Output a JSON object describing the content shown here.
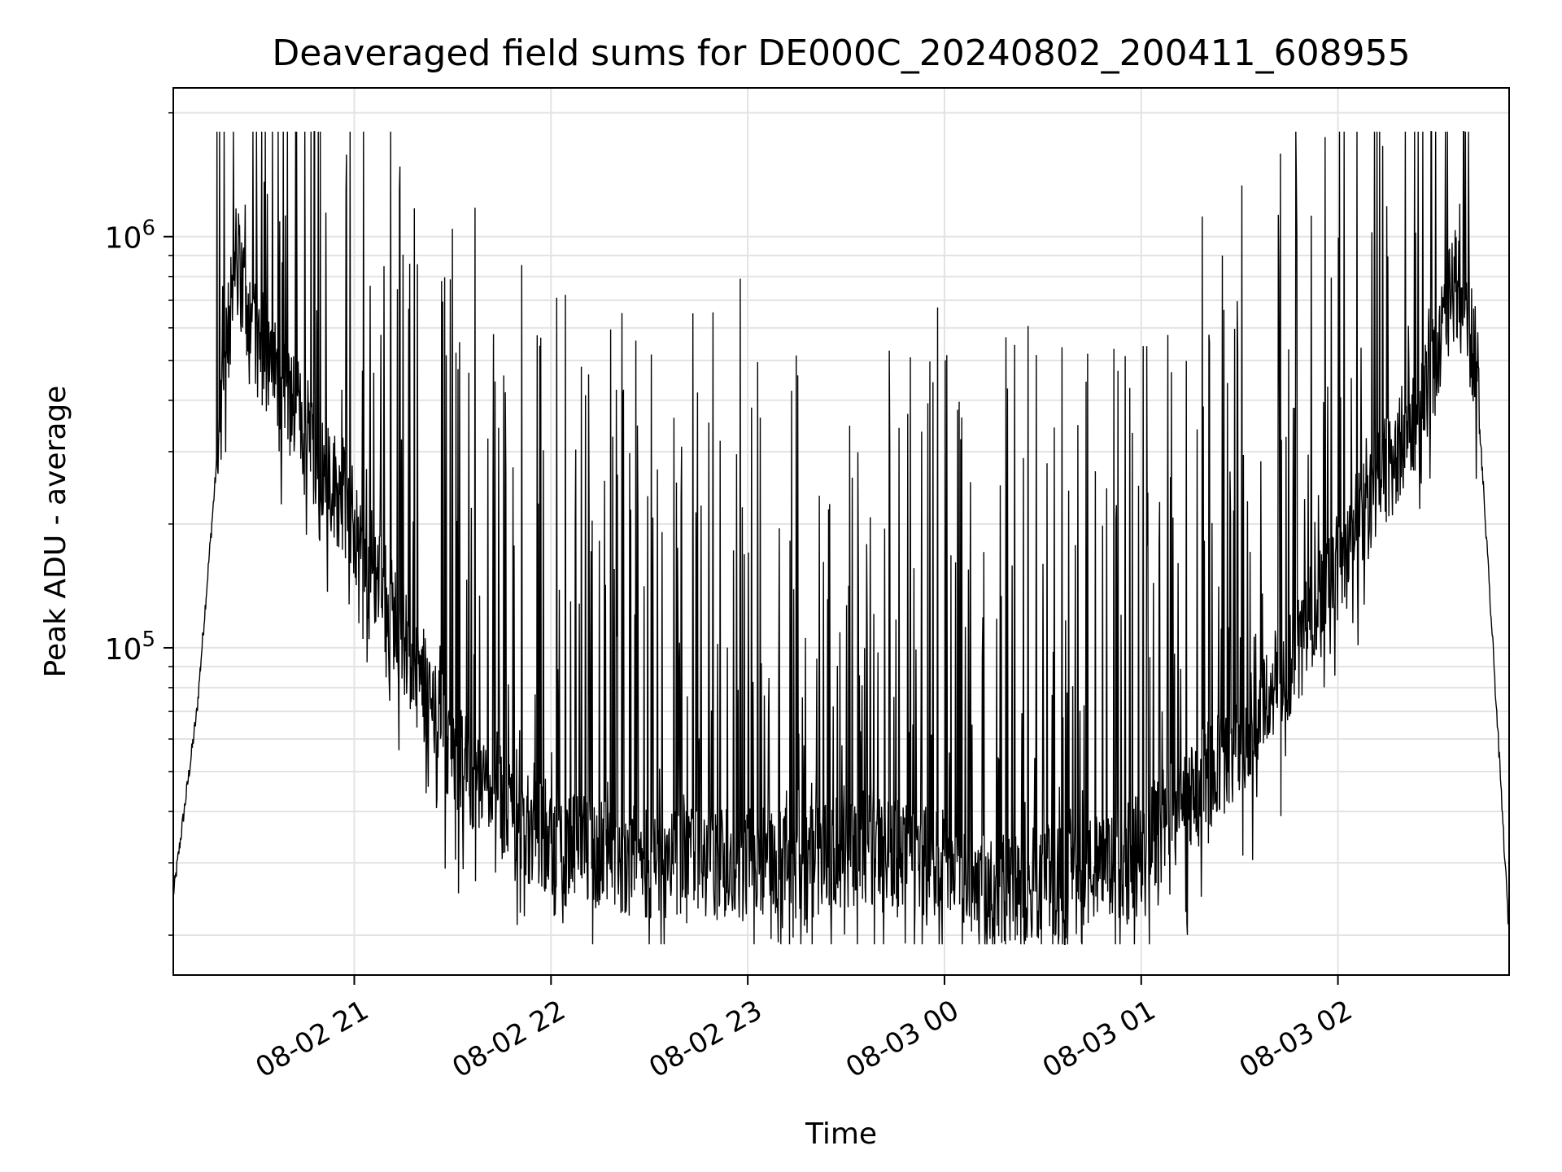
{
  "chart_data": {
    "type": "line",
    "title": "Deaveraged field sums for DE000C_20240802_200411_608955",
    "xlabel": "Time",
    "ylabel": "Peak ADU - average",
    "yscale": "log",
    "grid": true,
    "x_time_range_hours": [
      20.08,
      26.87
    ],
    "ylim": [
      16000,
      2300000
    ],
    "x_ticks": [
      {
        "hour": 21,
        "label": "08-02 21"
      },
      {
        "hour": 22,
        "label": "08-02 22"
      },
      {
        "hour": 23,
        "label": "08-02 23"
      },
      {
        "hour": 24,
        "label": "08-03 00"
      },
      {
        "hour": 25,
        "label": "08-03 01"
      },
      {
        "hour": 26,
        "label": "08-03 02"
      }
    ],
    "y_ticks": [
      {
        "value": 100000,
        "base": "10",
        "exp": "5"
      },
      {
        "value": 1000000,
        "base": "10",
        "exp": "6"
      }
    ],
    "line_color": "#000000",
    "series": [
      {
        "envelope_hours": [
          20.08,
          20.2,
          20.3,
          20.4,
          20.5,
          20.7,
          21.0,
          21.2,
          21.5,
          21.8,
          22.0,
          22.3,
          22.6,
          23.0,
          23.3,
          23.6,
          24.0,
          24.3,
          24.6,
          24.9,
          25.2,
          25.5,
          25.8,
          26.0,
          26.3,
          26.5,
          26.6,
          26.7,
          26.8,
          26.87
        ],
        "envelope_values": [
          25000,
          70000,
          280000,
          900000,
          550000,
          380000,
          200000,
          120000,
          55000,
          40000,
          33000,
          31000,
          30000,
          30000,
          30000,
          33000,
          30000,
          26000,
          27000,
          30000,
          40000,
          60000,
          100000,
          160000,
          300000,
          500000,
          800000,
          500000,
          80000,
          20000
        ],
        "spike_rate": 0.18,
        "spike_max_value": 1800000,
        "noise_floor_value": 19000
      }
    ]
  }
}
